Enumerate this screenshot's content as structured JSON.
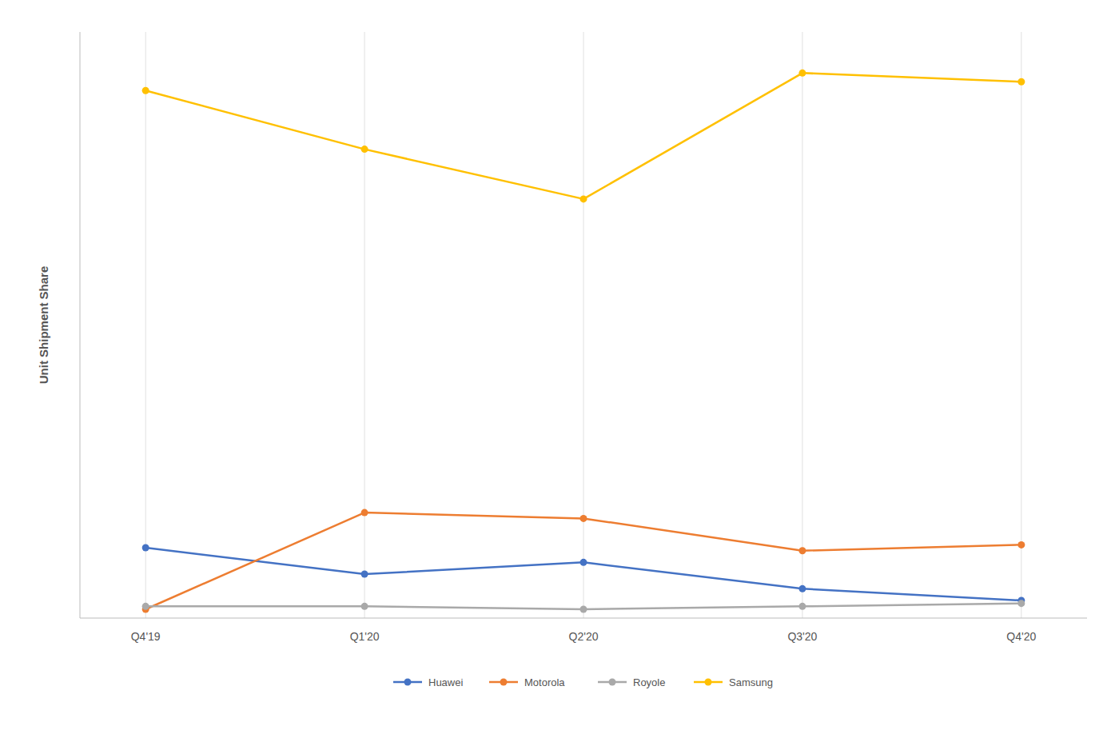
{
  "chart_data": {
    "type": "line",
    "ylabel": "Unit Shipment Share",
    "categories": [
      "Q4'19",
      "Q1'20",
      "Q2'20",
      "Q3'20",
      "Q4'20"
    ],
    "series": [
      {
        "name": "Huawei",
        "color": "#4472C4",
        "marker": "circle",
        "values": [
          12.0,
          7.5,
          9.5,
          5.0,
          3.0
        ]
      },
      {
        "name": "Motorola",
        "color": "#ED7D31",
        "marker": "circle",
        "values": [
          1.5,
          18.0,
          17.0,
          11.5,
          12.5
        ]
      },
      {
        "name": "Royole",
        "color": "#A9A9A9",
        "marker": "circle",
        "values": [
          2.0,
          2.0,
          1.5,
          2.0,
          2.5
        ]
      },
      {
        "name": "Samsung",
        "color": "#FFC000",
        "marker": "circle",
        "values": [
          90.0,
          80.0,
          71.5,
          93.0,
          91.5
        ]
      }
    ],
    "ylim": [
      0,
      100
    ],
    "yticks": [],
    "tick_labels": "x",
    "grid": true,
    "legend": "bottom"
  }
}
